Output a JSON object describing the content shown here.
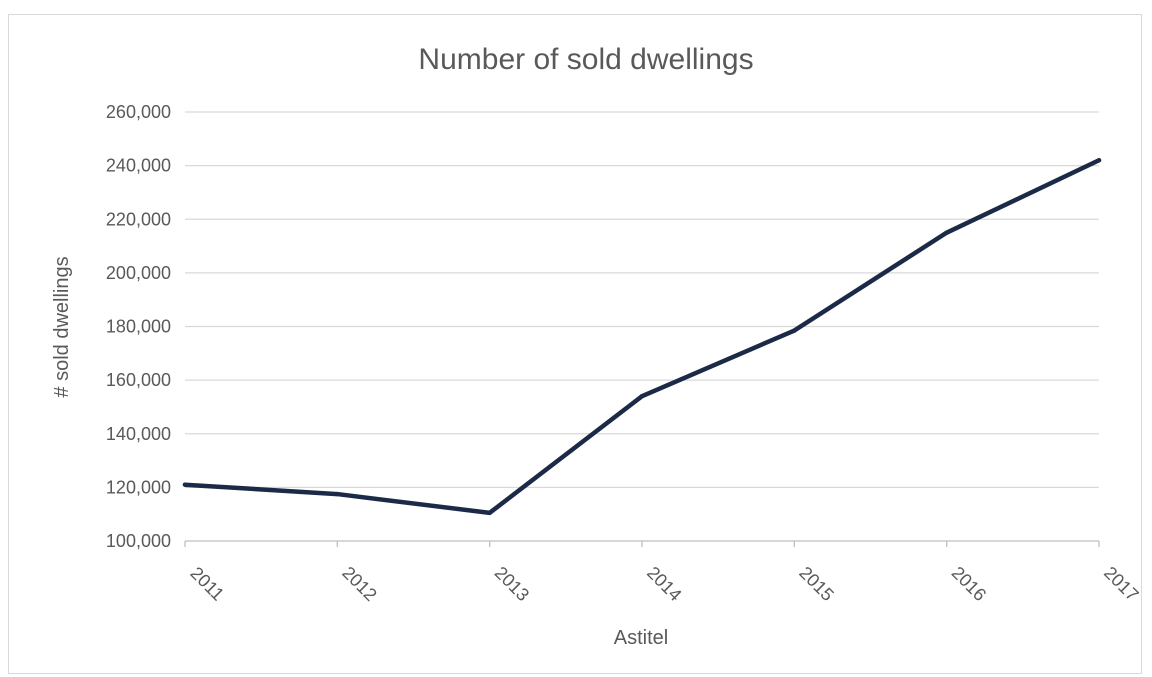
{
  "chart_data": {
    "type": "line",
    "title": "Number of sold dwellings",
    "xlabel": "Astitel",
    "ylabel": "# sold dwellings",
    "categories": [
      "2011",
      "2012",
      "2013",
      "2014",
      "2015",
      "2016",
      "2017"
    ],
    "series": [
      {
        "values": [
          121000,
          117500,
          110500,
          154000,
          178500,
          215000,
          242000
        ],
        "color": "#1b2a47"
      }
    ],
    "ylim": [
      100000,
      260000
    ],
    "yticks": [
      100000,
      120000,
      140000,
      160000,
      180000,
      200000,
      220000,
      240000,
      260000
    ],
    "ytick_labels": [
      "100,000",
      "120,000",
      "140,000",
      "160,000",
      "180,000",
      "200,000",
      "220,000",
      "240,000",
      "260,000"
    ],
    "grid": true,
    "legend": "none"
  }
}
